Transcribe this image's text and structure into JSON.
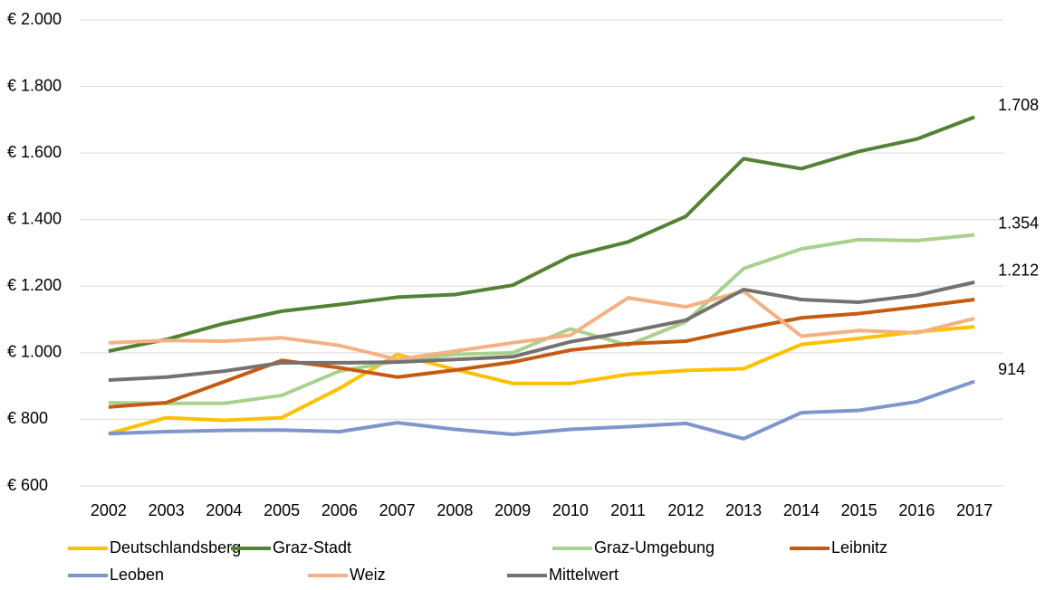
{
  "chart_data": {
    "type": "line",
    "categories": [
      "2002",
      "2003",
      "2004",
      "2005",
      "2006",
      "2007",
      "2008",
      "2009",
      "2010",
      "2011",
      "2012",
      "2013",
      "2014",
      "2015",
      "2016",
      "2017"
    ],
    "ylim": [
      600,
      2000
    ],
    "yticks": [
      {
        "value": 600,
        "label": "€ 600"
      },
      {
        "value": 800,
        "label": "€ 800"
      },
      {
        "value": 1000,
        "label": "€ 1.000"
      },
      {
        "value": 1200,
        "label": "€ 1.200"
      },
      {
        "value": 1400,
        "label": "€ 1.400"
      },
      {
        "value": 1600,
        "label": "€ 1.600"
      },
      {
        "value": 1800,
        "label": "€ 1.800"
      },
      {
        "value": 2000,
        "label": "€ 2.000"
      }
    ],
    "grid": true,
    "legend": "bottom",
    "series": [
      {
        "name": "Deutschlandsberg",
        "color": "#ffc000",
        "values": [
          757,
          805,
          797,
          805,
          893,
          995,
          950,
          908,
          908,
          935,
          947,
          952,
          1025,
          1043,
          1063,
          1078
        ]
      },
      {
        "name": "Graz-Stadt",
        "color": "#548235",
        "values": [
          1005,
          1040,
          1088,
          1125,
          1145,
          1167,
          1175,
          1203,
          1290,
          1333,
          1410,
          1583,
          1553,
          1605,
          1642,
          1708
        ],
        "value_labels": [
          null,
          null,
          null,
          null,
          null,
          null,
          null,
          null,
          null,
          null,
          null,
          null,
          null,
          null,
          null,
          "1.708"
        ]
      },
      {
        "name": "Graz-Umgebung",
        "color": "#a9d18e",
        "values": [
          850,
          848,
          848,
          872,
          945,
          975,
          995,
          1000,
          1072,
          1023,
          1093,
          1253,
          1312,
          1340,
          1337,
          1354
        ],
        "value_labels": [
          null,
          null,
          null,
          null,
          null,
          null,
          null,
          null,
          null,
          null,
          null,
          null,
          null,
          null,
          null,
          "1.354"
        ]
      },
      {
        "name": "Leibnitz",
        "color": "#c55a11",
        "values": [
          837,
          850,
          913,
          977,
          955,
          927,
          948,
          972,
          1008,
          1027,
          1035,
          1072,
          1105,
          1118,
          1138,
          1160
        ]
      },
      {
        "name": "Leoben",
        "color": "#7f96cc",
        "values": [
          757,
          763,
          767,
          768,
          763,
          790,
          770,
          755,
          770,
          778,
          788,
          742,
          820,
          827,
          853,
          914
        ],
        "value_labels": [
          null,
          null,
          null,
          null,
          null,
          null,
          null,
          null,
          null,
          null,
          null,
          null,
          null,
          null,
          null,
          "914"
        ]
      },
      {
        "name": "Weiz",
        "color": "#f4b183",
        "values": [
          1030,
          1037,
          1035,
          1045,
          1022,
          980,
          1005,
          1030,
          1053,
          1165,
          1138,
          1185,
          1050,
          1067,
          1060,
          1103
        ]
      },
      {
        "name": "Mittelwert",
        "color": "#767171",
        "values": [
          918,
          927,
          945,
          970,
          970,
          972,
          980,
          988,
          1033,
          1063,
          1098,
          1190,
          1160,
          1152,
          1173,
          1212
        ],
        "value_labels": [
          null,
          null,
          null,
          null,
          null,
          null,
          null,
          null,
          null,
          null,
          null,
          null,
          null,
          null,
          null,
          "1.212"
        ]
      }
    ]
  }
}
